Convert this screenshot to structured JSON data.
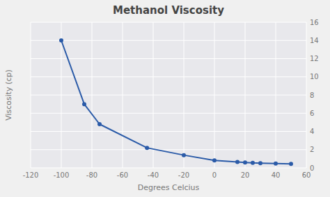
{
  "chart_data": {
    "type": "line",
    "title": "Methanol Viscosity",
    "xlabel": "Degrees Celcius",
    "ylabel": "Viscosity (cp)",
    "x": [
      -100,
      -85,
      -75,
      -44,
      -20,
      0,
      15,
      20,
      25,
      30,
      40,
      50
    ],
    "values": [
      14.0,
      7.0,
      4.8,
      2.2,
      1.4,
      0.82,
      0.65,
      0.6,
      0.55,
      0.52,
      0.47,
      0.44
    ],
    "color": "#2B5BA8",
    "marker": "circle",
    "xlim": [
      -120,
      60
    ],
    "ylim": [
      0,
      16
    ],
    "xticks": [
      -120,
      -100,
      -80,
      -60,
      -40,
      -20,
      0,
      20,
      40,
      60
    ],
    "yticks": [
      0,
      2,
      4,
      6,
      8,
      10,
      12,
      14,
      16
    ],
    "grid": true
  }
}
